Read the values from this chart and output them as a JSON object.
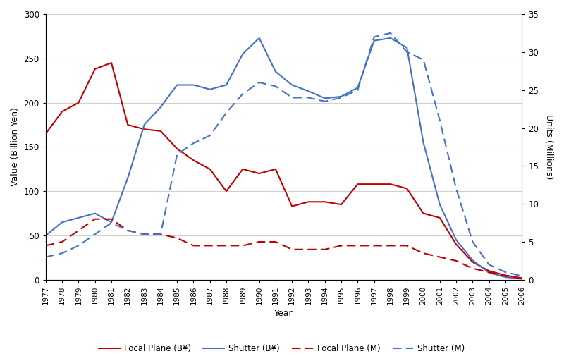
{
  "years": [
    1977,
    1978,
    1979,
    1980,
    1981,
    1982,
    1983,
    1984,
    1985,
    1986,
    1987,
    1988,
    1989,
    1990,
    1991,
    1992,
    1993,
    1994,
    1995,
    1996,
    1997,
    1998,
    1999,
    2000,
    2001,
    2002,
    2003,
    2004,
    2005,
    2006
  ],
  "focal_plane_billion": [
    165,
    190,
    200,
    238,
    245,
    175,
    170,
    168,
    148,
    135,
    125,
    100,
    125,
    120,
    125,
    83,
    88,
    88,
    85,
    108,
    108,
    108,
    103,
    75,
    70,
    40,
    20,
    10,
    5,
    2
  ],
  "shutter_billion": [
    50,
    65,
    70,
    75,
    65,
    115,
    175,
    195,
    220,
    220,
    215,
    220,
    255,
    273,
    235,
    220,
    213,
    205,
    207,
    217,
    270,
    273,
    262,
    155,
    85,
    45,
    22,
    8,
    3,
    1
  ],
  "focal_plane_million": [
    4.5,
    5.0,
    6.5,
    8.0,
    8.0,
    6.5,
    6.0,
    6.0,
    5.5,
    4.5,
    4.5,
    4.5,
    4.5,
    5.0,
    5.0,
    4.0,
    4.0,
    4.0,
    4.5,
    4.5,
    4.5,
    4.5,
    4.5,
    3.5,
    3.0,
    2.5,
    1.5,
    1.0,
    0.5,
    0.2
  ],
  "shutter_million": [
    3.0,
    3.5,
    4.5,
    6.0,
    7.5,
    6.5,
    6.0,
    6.0,
    16.5,
    18.0,
    19.0,
    22.0,
    24.5,
    26.0,
    25.5,
    24.0,
    24.0,
    23.5,
    24.0,
    25.0,
    32.0,
    32.5,
    30.0,
    29.0,
    21.0,
    12.0,
    5.0,
    2.0,
    1.0,
    0.5
  ],
  "xlabel": "Year",
  "ylabel_left": "Value (Billion Yen)",
  "ylabel_right": "Units (Millions)",
  "ylim_left": [
    0,
    300
  ],
  "ylim_right": [
    0,
    35
  ],
  "yticks_left": [
    0,
    50,
    100,
    150,
    200,
    250,
    300
  ],
  "yticks_right": [
    0,
    5,
    10,
    15,
    20,
    25,
    30,
    35
  ],
  "focal_plane_billion_color": "#c00000",
  "shutter_billion_color": "#4472c4",
  "focal_plane_million_color": "#c00000",
  "shutter_million_color": "#4472c4",
  "legend_labels": [
    "Focal Plane (B¥)",
    "Shutter (B¥)",
    "Focal Plane (M)",
    "Shutter (M)"
  ],
  "bg_color": "#ffffff",
  "grid_color": "#d0d0d0"
}
